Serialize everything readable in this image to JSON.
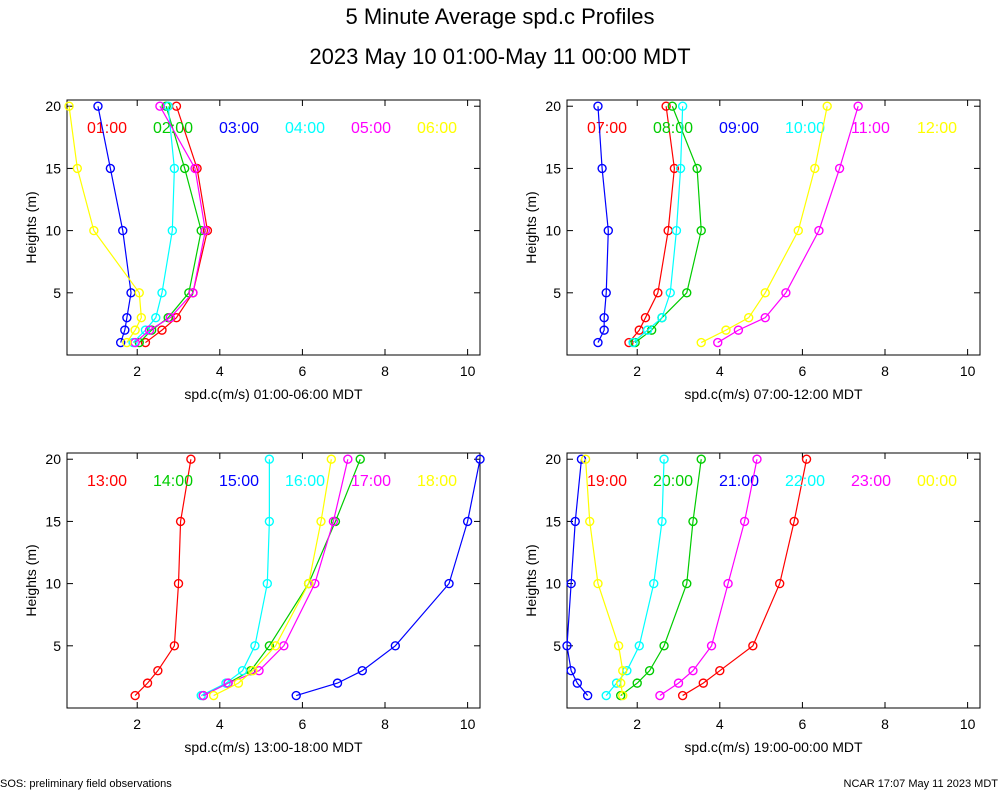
{
  "header": {
    "title": "5 Minute Average spd.c Profiles",
    "subtitle": "2023 May 10 01:00-May 11 00:00 MDT"
  },
  "footer": {
    "left": "SOS: preliminary field observations",
    "right": "NCAR 17:07 May 11 2023 MDT"
  },
  "chart_data": [
    {
      "type": "line",
      "xlabel": "spd.c(m/s) 01:00-06:00 MDT",
      "ylabel": "Heights (m)",
      "xlim": [
        0.3,
        10.3
      ],
      "ylim": [
        0,
        20.5
      ],
      "xticks": [
        2,
        4,
        6,
        8,
        10
      ],
      "yticks": [
        5,
        10,
        15,
        20
      ],
      "series": [
        {
          "name": "01:00",
          "color": "#ff0000",
          "points": [
            [
              2.2,
              1
            ],
            [
              2.6,
              2
            ],
            [
              2.95,
              3
            ],
            [
              3.35,
              5
            ],
            [
              3.7,
              10
            ],
            [
              3.45,
              15
            ],
            [
              2.95,
              20
            ]
          ]
        },
        {
          "name": "02:00",
          "color": "#00cc00",
          "points": [
            [
              2.05,
              1
            ],
            [
              2.35,
              2
            ],
            [
              2.75,
              3
            ],
            [
              3.25,
              5
            ],
            [
              3.55,
              10
            ],
            [
              3.15,
              15
            ],
            [
              2.7,
              20
            ]
          ]
        },
        {
          "name": "03:00",
          "color": "#0000ff",
          "points": [
            [
              1.6,
              1
            ],
            [
              1.7,
              2
            ],
            [
              1.75,
              3
            ],
            [
              1.85,
              5
            ],
            [
              1.65,
              10
            ],
            [
              1.35,
              15
            ],
            [
              1.05,
              20
            ]
          ]
        },
        {
          "name": "04:00",
          "color": "#00ffff",
          "points": [
            [
              1.9,
              1
            ],
            [
              2.2,
              2
            ],
            [
              2.45,
              3
            ],
            [
              2.6,
              5
            ],
            [
              2.85,
              10
            ],
            [
              2.9,
              15
            ],
            [
              2.75,
              20
            ]
          ]
        },
        {
          "name": "05:00",
          "color": "#ff00ff",
          "points": [
            [
              1.95,
              1
            ],
            [
              2.3,
              2
            ],
            [
              2.8,
              3
            ],
            [
              3.35,
              5
            ],
            [
              3.65,
              10
            ],
            [
              3.4,
              15
            ],
            [
              2.55,
              20
            ]
          ]
        },
        {
          "name": "06:00",
          "color": "#ffff00",
          "points": [
            [
              1.75,
              1
            ],
            [
              1.95,
              2
            ],
            [
              2.1,
              3
            ],
            [
              2.05,
              5
            ],
            [
              0.95,
              10
            ],
            [
              0.55,
              15
            ],
            [
              0.35,
              20
            ]
          ]
        }
      ]
    },
    {
      "type": "line",
      "xlabel": "spd.c(m/s) 07:00-12:00 MDT",
      "ylabel": "Heights (m)",
      "xlim": [
        0.3,
        10.3
      ],
      "ylim": [
        0,
        20.5
      ],
      "xticks": [
        2,
        4,
        6,
        8,
        10
      ],
      "yticks": [
        5,
        10,
        15,
        20
      ],
      "series": [
        {
          "name": "07:00",
          "color": "#ff0000",
          "points": [
            [
              1.8,
              1
            ],
            [
              2.05,
              2
            ],
            [
              2.2,
              3
            ],
            [
              2.5,
              5
            ],
            [
              2.75,
              10
            ],
            [
              2.9,
              15
            ],
            [
              2.7,
              20
            ]
          ]
        },
        {
          "name": "08:00",
          "color": "#00cc00",
          "points": [
            [
              1.95,
              1
            ],
            [
              2.35,
              2
            ],
            [
              2.6,
              3
            ],
            [
              3.2,
              5
            ],
            [
              3.55,
              10
            ],
            [
              3.45,
              15
            ],
            [
              2.85,
              20
            ]
          ]
        },
        {
          "name": "09:00",
          "color": "#0000ff",
          "points": [
            [
              1.05,
              1
            ],
            [
              1.2,
              2
            ],
            [
              1.2,
              3
            ],
            [
              1.25,
              5
            ],
            [
              1.3,
              10
            ],
            [
              1.15,
              15
            ],
            [
              1.05,
              20
            ]
          ]
        },
        {
          "name": "10:00",
          "color": "#00ffff",
          "points": [
            [
              1.9,
              1
            ],
            [
              2.25,
              2
            ],
            [
              2.6,
              3
            ],
            [
              2.8,
              5
            ],
            [
              2.95,
              10
            ],
            [
              3.05,
              15
            ],
            [
              3.1,
              20
            ]
          ]
        },
        {
          "name": "11:00",
          "color": "#ff00ff",
          "points": [
            [
              3.95,
              1
            ],
            [
              4.45,
              2
            ],
            [
              5.1,
              3
            ],
            [
              5.6,
              5
            ],
            [
              6.4,
              10
            ],
            [
              6.9,
              15
            ],
            [
              7.35,
              20
            ]
          ]
        },
        {
          "name": "12:00",
          "color": "#ffff00",
          "points": [
            [
              3.55,
              1
            ],
            [
              4.15,
              2
            ],
            [
              4.7,
              3
            ],
            [
              5.1,
              5
            ],
            [
              5.9,
              10
            ],
            [
              6.3,
              15
            ],
            [
              6.6,
              20
            ]
          ]
        }
      ]
    },
    {
      "type": "line",
      "xlabel": "spd.c(m/s) 13:00-18:00 MDT",
      "ylabel": "Heights (m)",
      "xlim": [
        0.3,
        10.3
      ],
      "ylim": [
        0,
        20.5
      ],
      "xticks": [
        2,
        4,
        6,
        8,
        10
      ],
      "yticks": [
        5,
        10,
        15,
        20
      ],
      "series": [
        {
          "name": "13:00",
          "color": "#ff0000",
          "points": [
            [
              1.95,
              1
            ],
            [
              2.25,
              2
            ],
            [
              2.5,
              3
            ],
            [
              2.9,
              5
            ],
            [
              3.0,
              10
            ],
            [
              3.05,
              15
            ],
            [
              3.3,
              20
            ]
          ]
        },
        {
          "name": "14:00",
          "color": "#00cc00",
          "points": [
            [
              3.6,
              1
            ],
            [
              4.2,
              2
            ],
            [
              4.75,
              3
            ],
            [
              5.2,
              5
            ],
            [
              6.15,
              10
            ],
            [
              6.8,
              15
            ],
            [
              7.4,
              20
            ]
          ]
        },
        {
          "name": "15:00",
          "color": "#0000ff",
          "points": [
            [
              5.85,
              1
            ],
            [
              6.85,
              2
            ],
            [
              7.45,
              3
            ],
            [
              8.25,
              5
            ],
            [
              9.55,
              10
            ],
            [
              10.0,
              15
            ],
            [
              10.3,
              20
            ]
          ]
        },
        {
          "name": "16:00",
          "color": "#00ffff",
          "points": [
            [
              3.55,
              1
            ],
            [
              4.15,
              2
            ],
            [
              4.55,
              3
            ],
            [
              4.85,
              5
            ],
            [
              5.15,
              10
            ],
            [
              5.2,
              15
            ],
            [
              5.2,
              20
            ]
          ]
        },
        {
          "name": "17:00",
          "color": "#ff00ff",
          "points": [
            [
              3.6,
              1
            ],
            [
              4.2,
              2
            ],
            [
              4.95,
              3
            ],
            [
              5.55,
              5
            ],
            [
              6.3,
              10
            ],
            [
              6.75,
              15
            ],
            [
              7.1,
              20
            ]
          ]
        },
        {
          "name": "18:00",
          "color": "#ffff00",
          "points": [
            [
              3.85,
              1
            ],
            [
              4.45,
              2
            ],
            [
              4.8,
              3
            ],
            [
              5.35,
              5
            ],
            [
              6.15,
              10
            ],
            [
              6.45,
              15
            ],
            [
              6.7,
              20
            ]
          ]
        }
      ]
    },
    {
      "type": "line",
      "xlabel": "spd.c(m/s) 19:00-00:00 MDT",
      "ylabel": "Heights (m)",
      "xlim": [
        0.3,
        10.3
      ],
      "ylim": [
        0,
        20.5
      ],
      "xticks": [
        2,
        4,
        6,
        8,
        10
      ],
      "yticks": [
        5,
        10,
        15,
        20
      ],
      "series": [
        {
          "name": "19:00",
          "color": "#ff0000",
          "points": [
            [
              3.1,
              1
            ],
            [
              3.6,
              2
            ],
            [
              4.0,
              3
            ],
            [
              4.8,
              5
            ],
            [
              5.45,
              10
            ],
            [
              5.8,
              15
            ],
            [
              6.1,
              20
            ]
          ]
        },
        {
          "name": "20:00",
          "color": "#00cc00",
          "points": [
            [
              1.6,
              1
            ],
            [
              2.0,
              2
            ],
            [
              2.3,
              3
            ],
            [
              2.65,
              5
            ],
            [
              3.2,
              10
            ],
            [
              3.35,
              15
            ],
            [
              3.55,
              20
            ]
          ]
        },
        {
          "name": "21:00",
          "color": "#0000ff",
          "points": [
            [
              0.8,
              1
            ],
            [
              0.55,
              2
            ],
            [
              0.4,
              3
            ],
            [
              0.3,
              5
            ],
            [
              0.4,
              10
            ],
            [
              0.5,
              15
            ],
            [
              0.65,
              20
            ]
          ]
        },
        {
          "name": "22:00",
          "color": "#00ffff",
          "points": [
            [
              1.25,
              1
            ],
            [
              1.5,
              2
            ],
            [
              1.75,
              3
            ],
            [
              2.05,
              5
            ],
            [
              2.4,
              10
            ],
            [
              2.6,
              15
            ],
            [
              2.65,
              20
            ]
          ]
        },
        {
          "name": "23:00",
          "color": "#ff00ff",
          "points": [
            [
              2.55,
              1
            ],
            [
              3.0,
              2
            ],
            [
              3.35,
              3
            ],
            [
              3.8,
              5
            ],
            [
              4.2,
              10
            ],
            [
              4.6,
              15
            ],
            [
              4.9,
              20
            ]
          ]
        },
        {
          "name": "00:00",
          "color": "#ffff00",
          "points": [
            [
              1.65,
              1
            ],
            [
              1.6,
              2
            ],
            [
              1.65,
              3
            ],
            [
              1.55,
              5
            ],
            [
              1.05,
              10
            ],
            [
              0.85,
              15
            ],
            [
              0.75,
              20
            ]
          ]
        }
      ]
    }
  ]
}
